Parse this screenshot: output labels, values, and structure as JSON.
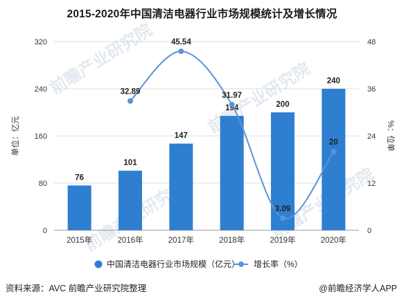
{
  "chart_data": {
    "type": "bar",
    "title": "2015-2020年中国清洁电器行业市场规模统计及增长情况",
    "categories": [
      "2015年",
      "2016年",
      "2017年",
      "2018年",
      "2019年",
      "2020年"
    ],
    "series": [
      {
        "name": "中国清洁电器行业市场规模（亿元）",
        "type": "bar",
        "axis": "left",
        "values": [
          76,
          101,
          147,
          194,
          200,
          240
        ]
      },
      {
        "name": "增长率（%）",
        "type": "line",
        "axis": "right",
        "values": [
          null,
          32.89,
          45.54,
          31.97,
          3.09,
          20
        ]
      }
    ],
    "ylabel_left": "单位：亿元",
    "ylabel_right": "%：位单",
    "ylim_left": [
      0,
      320
    ],
    "ylim_right": [
      0,
      48
    ],
    "yticks_left": [
      "0",
      "80",
      "160",
      "240",
      "320"
    ],
    "yticks_right": [
      "0",
      "12",
      "24",
      "36",
      "48"
    ],
    "bar_color": "#2f7fd1",
    "line_color": "#5b93d8",
    "legend_position": "bottom",
    "grid": "horizontal"
  },
  "footer": {
    "source": "资料来源：AVC 前瞻产业研究院整理",
    "brand": "@前瞻经济学人APP"
  },
  "watermark": {
    "text": "前瞻产业研究院"
  }
}
